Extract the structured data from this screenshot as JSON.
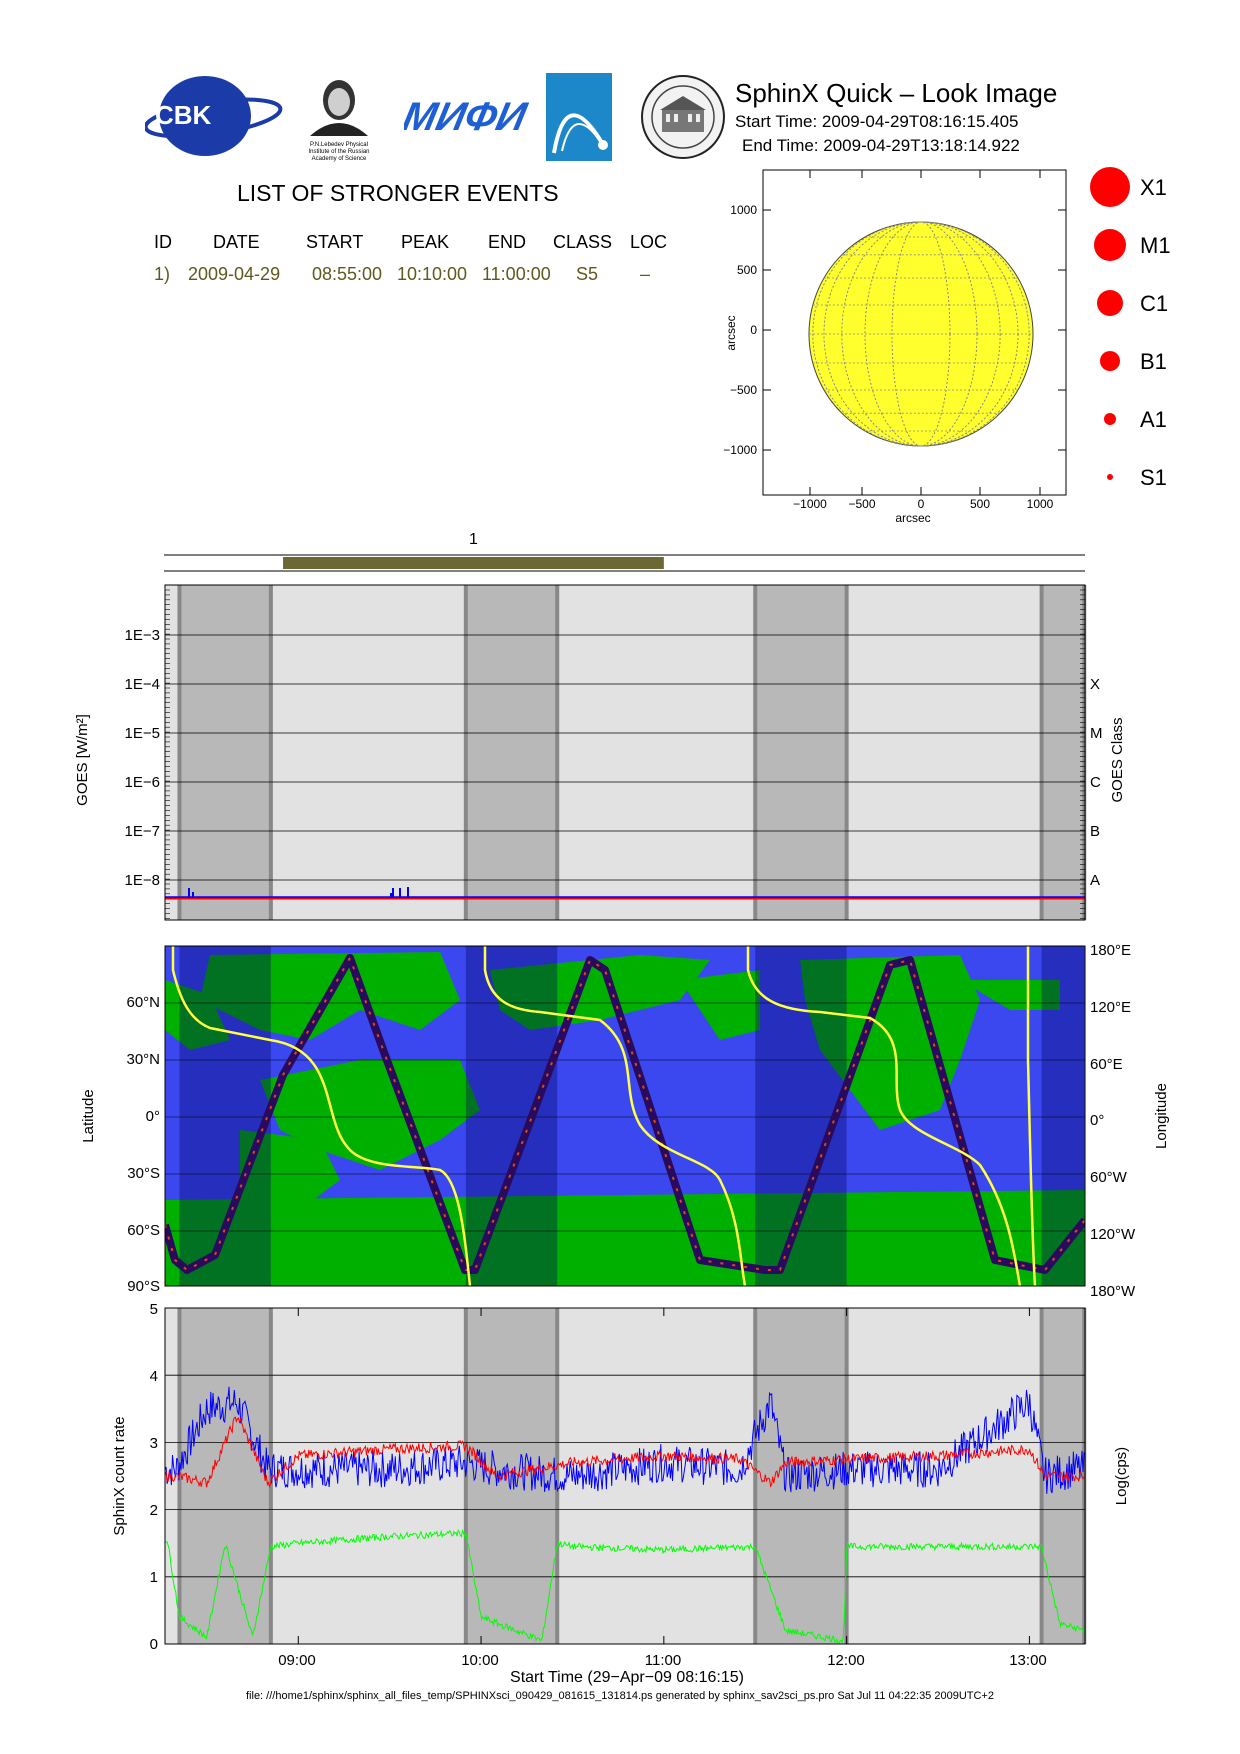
{
  "header": {
    "logos": [
      {
        "name": "cbk-logo",
        "text": "CBK"
      },
      {
        "name": "lebedev-portrait-logo",
        "text": "P.N.Lebedev Physical Institute of the Russian Academy of Science"
      },
      {
        "name": "miphi-logo",
        "text": "МИФИ"
      },
      {
        "name": "comet-logo",
        "text": ""
      },
      {
        "name": "university-seal-logo",
        "text": ""
      }
    ],
    "title": "SphinX Quick – Look Image",
    "start_time": "Start Time: 2009-04-29T08:16:15.405",
    "end_time": "End Time: 2009-04-29T13:18:14.922"
  },
  "events": {
    "title": "LIST OF STRONGER EVENTS",
    "columns": [
      "ID",
      "DATE",
      "START",
      "PEAK",
      "END",
      "CLASS",
      "LOC"
    ],
    "rows": [
      [
        "1)",
        "2009-04-29",
        "08:55:00",
        "10:10:00",
        "11:00:00",
        "S5",
        "–"
      ]
    ]
  },
  "sun_map": {
    "xlabel": "arcsec",
    "ylabel": "arcsec",
    "x_ticks": [
      "−1000",
      "−500",
      "0",
      "500",
      "1000"
    ],
    "y_ticks": [
      "1000",
      "500",
      "0",
      "−500",
      "−1000"
    ],
    "disk_color": "#ffff2e"
  },
  "size_legend": [
    {
      "label": "X1"
    },
    {
      "label": "M1"
    },
    {
      "label": "C1"
    },
    {
      "label": "B1"
    },
    {
      "label": "A1"
    },
    {
      "label": "S1"
    }
  ],
  "event_bar": {
    "label": "1",
    "start": "08:55:00",
    "end": "11:00:00",
    "color": "#6b6834"
  },
  "goes_panel": {
    "ylabel": "GOES [W/m²]",
    "right_label": "GOES Class",
    "y_ticks": [
      "1E−3",
      "1E−4",
      "1E−5",
      "1E−6",
      "1E−7",
      "1E−8"
    ],
    "class_ticks": [
      "X",
      "M",
      "C",
      "B",
      "A"
    ]
  },
  "orbit_panel": {
    "ylabel": "Latitude",
    "right_label": "Longitude",
    "lat_ticks": [
      "60°N",
      "30°N",
      "0°",
      "30°S",
      "60°S",
      "90°S"
    ],
    "lon_ticks": [
      "180°E",
      "120°E",
      "60°E",
      "0°",
      "60°W",
      "120°W",
      "180°W"
    ]
  },
  "rate_panel": {
    "ylabel": "SphinX count rate",
    "right_label": "Log(cps)",
    "y_ticks": [
      "5",
      "4",
      "3",
      "2",
      "1",
      "0"
    ],
    "x_ticks": [
      "09:00",
      "10:00",
      "11:00",
      "12:00",
      "13:00"
    ],
    "xlabel": "Start Time (29−Apr−09 08:16:15)"
  },
  "footer": "file: ///home1/sphinx/sphinx_all_files_temp/SPHINXsci_090429_081615_131814.ps generated by sphinx_sav2sci_ps.pro Sat Jul 11 04:22:35 2009UTC+2",
  "chart_data": {
    "type": "line",
    "time_range": [
      "08:16:15",
      "13:18:15"
    ],
    "night_intervals": [
      [
        "08:21",
        "08:51"
      ],
      [
        "09:55",
        "10:25"
      ],
      [
        "11:30",
        "12:00"
      ],
      [
        "13:04",
        "13:18"
      ]
    ],
    "series": [
      {
        "name": "",
        "color": "#0000ff",
        "x": [
          "08:20",
          "08:30",
          "08:40",
          "08:50",
          "09:00",
          "09:30",
          "09:55",
          "10:05",
          "10:30",
          "11:00",
          "11:25",
          "11:35",
          "11:40",
          "12:00",
          "12:30",
          "13:00",
          "13:05",
          "13:15"
        ],
        "values": [
          2.6,
          3.5,
          3.6,
          2.6,
          2.6,
          2.6,
          2.7,
          2.6,
          2.5,
          2.7,
          2.6,
          3.6,
          2.5,
          2.6,
          2.6,
          3.6,
          2.5,
          2.6
        ]
      },
      {
        "name": "",
        "color": "#ff0000",
        "x": [
          "08:20",
          "08:30",
          "08:40",
          "08:50",
          "09:00",
          "09:30",
          "09:55",
          "10:05",
          "10:30",
          "11:00",
          "11:25",
          "11:35",
          "11:40",
          "12:00",
          "12:30",
          "13:00",
          "13:05",
          "13:15"
        ],
        "values": [
          2.5,
          2.4,
          3.4,
          2.4,
          2.8,
          2.9,
          2.95,
          2.5,
          2.7,
          2.8,
          2.75,
          2.4,
          2.7,
          2.75,
          2.8,
          2.9,
          2.5,
          2.5
        ]
      },
      {
        "name": "",
        "color": "#00ff00",
        "x": [
          "08:17",
          "08:21",
          "08:30",
          "08:36",
          "08:45",
          "08:51",
          "09:00",
          "09:30",
          "09:55",
          "10:00",
          "10:20",
          "10:25",
          "10:30",
          "11:00",
          "11:30",
          "11:40",
          "11:59",
          "12:00",
          "12:30",
          "13:04",
          "13:10",
          "13:18"
        ],
        "values": [
          1.55,
          0.4,
          0.1,
          1.5,
          0.1,
          1.45,
          1.5,
          1.6,
          1.65,
          0.4,
          0.05,
          1.5,
          1.45,
          1.4,
          1.45,
          0.2,
          0.05,
          1.45,
          1.45,
          1.45,
          0.3,
          0.2
        ]
      }
    ],
    "goes_series": {
      "name": "",
      "color": "#0000ff",
      "level": "1E−8.4"
    },
    "ylim_rate": [
      0,
      5
    ]
  }
}
